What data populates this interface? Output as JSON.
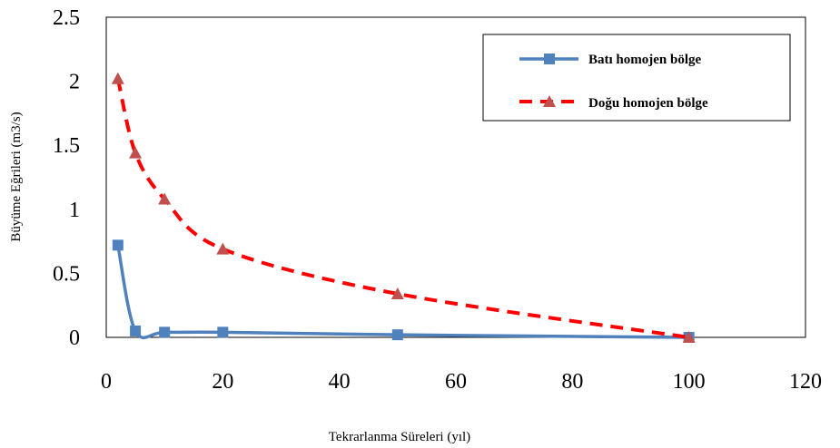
{
  "chart_data": {
    "type": "line",
    "title": "",
    "xlabel": "Tekrarlanma Süreleri (yıl)",
    "ylabel": "Büyüme Eğrileri (m3/s)",
    "xlim": [
      0,
      120
    ],
    "ylim": [
      0,
      2.5
    ],
    "x_ticks": [
      "0",
      "20",
      "40",
      "60",
      "80",
      "100",
      "120"
    ],
    "y_ticks": [
      "0",
      "0.5",
      "1",
      "1.5",
      "2",
      "2.5"
    ],
    "grid": false,
    "legend_position": "top-right",
    "series": [
      {
        "name": "Batı homojen bölge",
        "color": "#4F81BD",
        "line_style": "solid",
        "marker": "square",
        "x": [
          2,
          5,
          10,
          20,
          50,
          100
        ],
        "y": [
          0.72,
          0.05,
          0.04,
          0.04,
          0.02,
          0.0
        ]
      },
      {
        "name": "Doğu homojen bölge",
        "color": "#FF0000",
        "marker_color": "#C0504D",
        "line_style": "dashed",
        "marker": "triangle",
        "x": [
          2,
          5,
          10,
          20,
          50,
          100
        ],
        "y": [
          2.02,
          1.44,
          1.08,
          0.69,
          0.34,
          0.0
        ]
      }
    ]
  }
}
